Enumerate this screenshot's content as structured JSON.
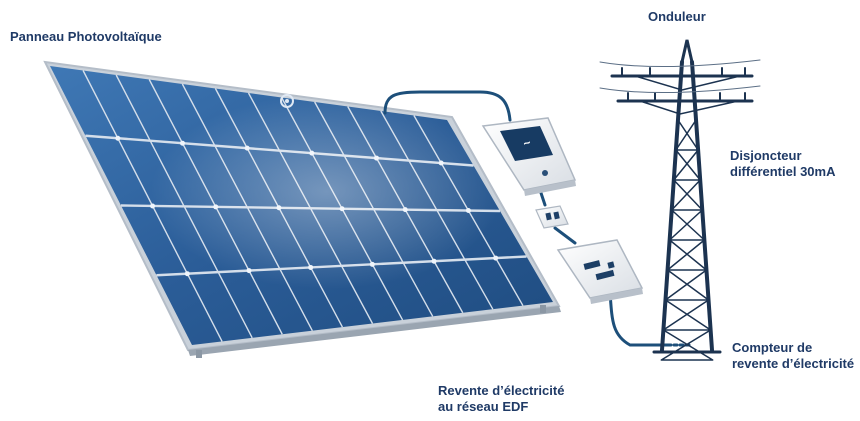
{
  "labels": {
    "panel": "Panneau Photovoltaïque",
    "inverter": "Onduleur",
    "breaker": "Disjoncteur\ndifférentiel 30mA",
    "meter": "Compteur de\nrevente d’électricité",
    "resale": "Revente d’électricité\nau réseau EDF"
  },
  "colors": {
    "label_text": "#1f3a66",
    "panel_cell": "#2d5f99",
    "panel_frame": "#cfd6df",
    "cable": "#1d4f7a",
    "box": "#f3f5f7",
    "pylon": "#1c3350"
  }
}
